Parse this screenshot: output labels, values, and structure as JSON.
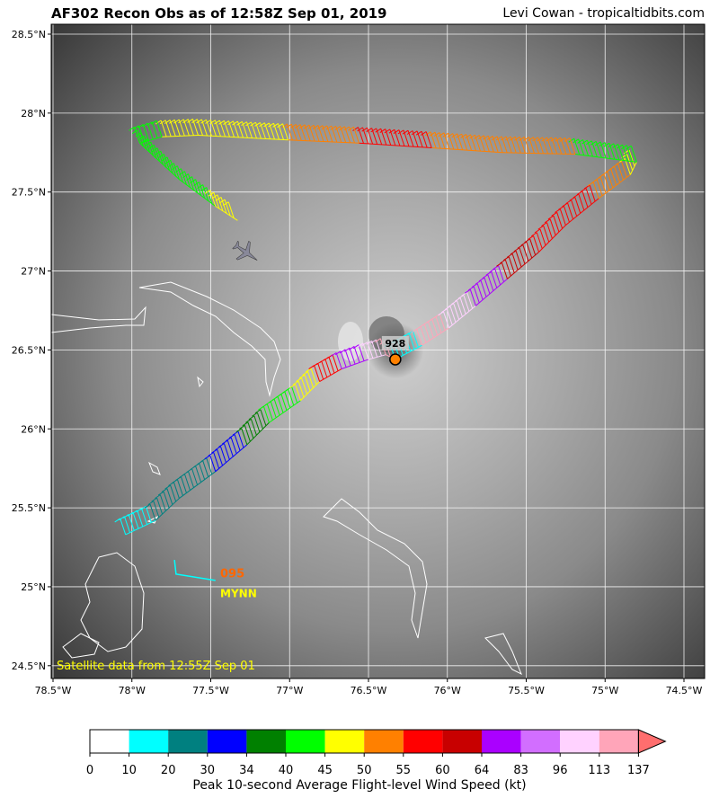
{
  "header": {
    "title": "AF302 Recon Obs as of 12:58Z Sep 01, 2019",
    "credit": "Levi Cowan - tropicaltidbits.com"
  },
  "map": {
    "lon_range": [
      -78.5,
      -74.4
    ],
    "lat_range": [
      24.42,
      28.57
    ],
    "lon_ticks": [
      {
        "v": -78.5,
        "label": "78.5°W"
      },
      {
        "v": -78,
        "label": "78°W"
      },
      {
        "v": -77.5,
        "label": "77.5°W"
      },
      {
        "v": -77,
        "label": "77°W"
      },
      {
        "v": -76.5,
        "label": "76.5°W"
      },
      {
        "v": -76,
        "label": "76°W"
      },
      {
        "v": -75.5,
        "label": "75.5°W"
      },
      {
        "v": -75,
        "label": "75°W"
      },
      {
        "v": -74.5,
        "label": "74.5°W"
      }
    ],
    "lat_ticks": [
      {
        "v": 28.5,
        "label": "28.5°N"
      },
      {
        "v": 28,
        "label": "28°N"
      },
      {
        "v": 27.5,
        "label": "27.5°N"
      },
      {
        "v": 27,
        "label": "27°N"
      },
      {
        "v": 26.5,
        "label": "26.5°N"
      },
      {
        "v": 26,
        "label": "26°N"
      },
      {
        "v": 25.5,
        "label": "25.5°N"
      },
      {
        "v": 25,
        "label": "25°N"
      },
      {
        "v": 24.5,
        "label": "24.5°N"
      }
    ],
    "satellite_note": "Satellite data from 12:55Z Sep 01",
    "center": {
      "lon": -76.33,
      "lat": 26.44,
      "pressure_label": "928",
      "color": "#ff8000"
    },
    "station": {
      "lon": -77.44,
      "lat": 24.98,
      "name": "MYNN",
      "value": "095",
      "value_color": "#ff6600",
      "name_color": "#ffff00"
    },
    "aircraft_icon": "airplane-icon",
    "aircraft": {
      "lon": -77.28,
      "lat": 27.12
    },
    "track": [
      {
        "lon": -78.04,
        "lat": 25.33,
        "kt": 15
      },
      {
        "lon": -77.85,
        "lat": 25.42,
        "kt": 22
      },
      {
        "lon": -77.7,
        "lat": 25.56,
        "kt": 25
      },
      {
        "lon": -77.47,
        "lat": 25.73,
        "kt": 32
      },
      {
        "lon": -77.27,
        "lat": 25.9,
        "kt": 37
      },
      {
        "lon": -77.13,
        "lat": 26.04,
        "kt": 42
      },
      {
        "lon": -76.93,
        "lat": 26.18,
        "kt": 47
      },
      {
        "lon": -76.81,
        "lat": 26.3,
        "kt": 57
      },
      {
        "lon": -76.67,
        "lat": 26.38,
        "kt": 70
      },
      {
        "lon": -76.5,
        "lat": 26.44,
        "kt": 100
      },
      {
        "lon": -76.39,
        "lat": 26.47,
        "kt": 120
      },
      {
        "lon": -76.33,
        "lat": 26.44,
        "kt": 15
      },
      {
        "lon": -76.16,
        "lat": 26.53,
        "kt": 120
      },
      {
        "lon": -75.99,
        "lat": 26.64,
        "kt": 100
      },
      {
        "lon": -75.82,
        "lat": 26.78,
        "kt": 75
      },
      {
        "lon": -75.62,
        "lat": 26.95,
        "kt": 62
      },
      {
        "lon": -75.42,
        "lat": 27.12,
        "kt": 58
      },
      {
        "lon": -75.25,
        "lat": 27.29,
        "kt": 57
      },
      {
        "lon": -75.04,
        "lat": 27.46,
        "kt": 52
      },
      {
        "lon": -74.84,
        "lat": 27.61,
        "kt": 47
      },
      {
        "lon": -74.8,
        "lat": 27.69,
        "kt": 42
      },
      {
        "lon": -75.19,
        "lat": 27.74,
        "kt": 52
      },
      {
        "lon": -75.65,
        "lat": 27.75,
        "kt": 52
      },
      {
        "lon": -76.1,
        "lat": 27.78,
        "kt": 57
      },
      {
        "lon": -76.56,
        "lat": 27.81,
        "kt": 52
      },
      {
        "lon": -77.01,
        "lat": 27.83,
        "kt": 47
      },
      {
        "lon": -77.58,
        "lat": 27.86,
        "kt": 47
      },
      {
        "lon": -77.81,
        "lat": 27.85,
        "kt": 42
      },
      {
        "lon": -77.95,
        "lat": 27.81,
        "kt": 42
      },
      {
        "lon": -77.7,
        "lat": 27.58,
        "kt": 42
      },
      {
        "lon": -77.47,
        "lat": 27.41,
        "kt": 47
      },
      {
        "lon": -77.33,
        "lat": 27.32,
        "kt": 47
      }
    ],
    "track2": [
      {
        "lon": -77.73,
        "lat": 25.17,
        "kt": 15
      },
      {
        "lon": -77.72,
        "lat": 25.08,
        "kt": 15
      },
      {
        "lon": -77.47,
        "lat": 25.04,
        "kt": 15
      }
    ]
  },
  "colorbar": {
    "bounds": [
      0,
      10,
      20,
      30,
      34,
      40,
      45,
      50,
      55,
      60,
      64,
      83,
      96,
      113,
      137
    ],
    "labels": [
      "0",
      "10",
      "20",
      "30",
      "34",
      "40",
      "45",
      "50",
      "55",
      "60",
      "64",
      "83",
      "96",
      "113",
      "137"
    ],
    "colors": [
      "#ffffff",
      "#00ffff",
      "#008080",
      "#0000ff",
      "#008000",
      "#00ff00",
      "#ffff00",
      "#ff8000",
      "#ff0000",
      "#c80000",
      "#aa00ff",
      "#d26eff",
      "#ffd2ff",
      "#ffa5b9"
    ],
    "extend_color": "#ff6e6e",
    "label": "Peak 10-second Average Flight-level Wind Speed (kt)"
  }
}
